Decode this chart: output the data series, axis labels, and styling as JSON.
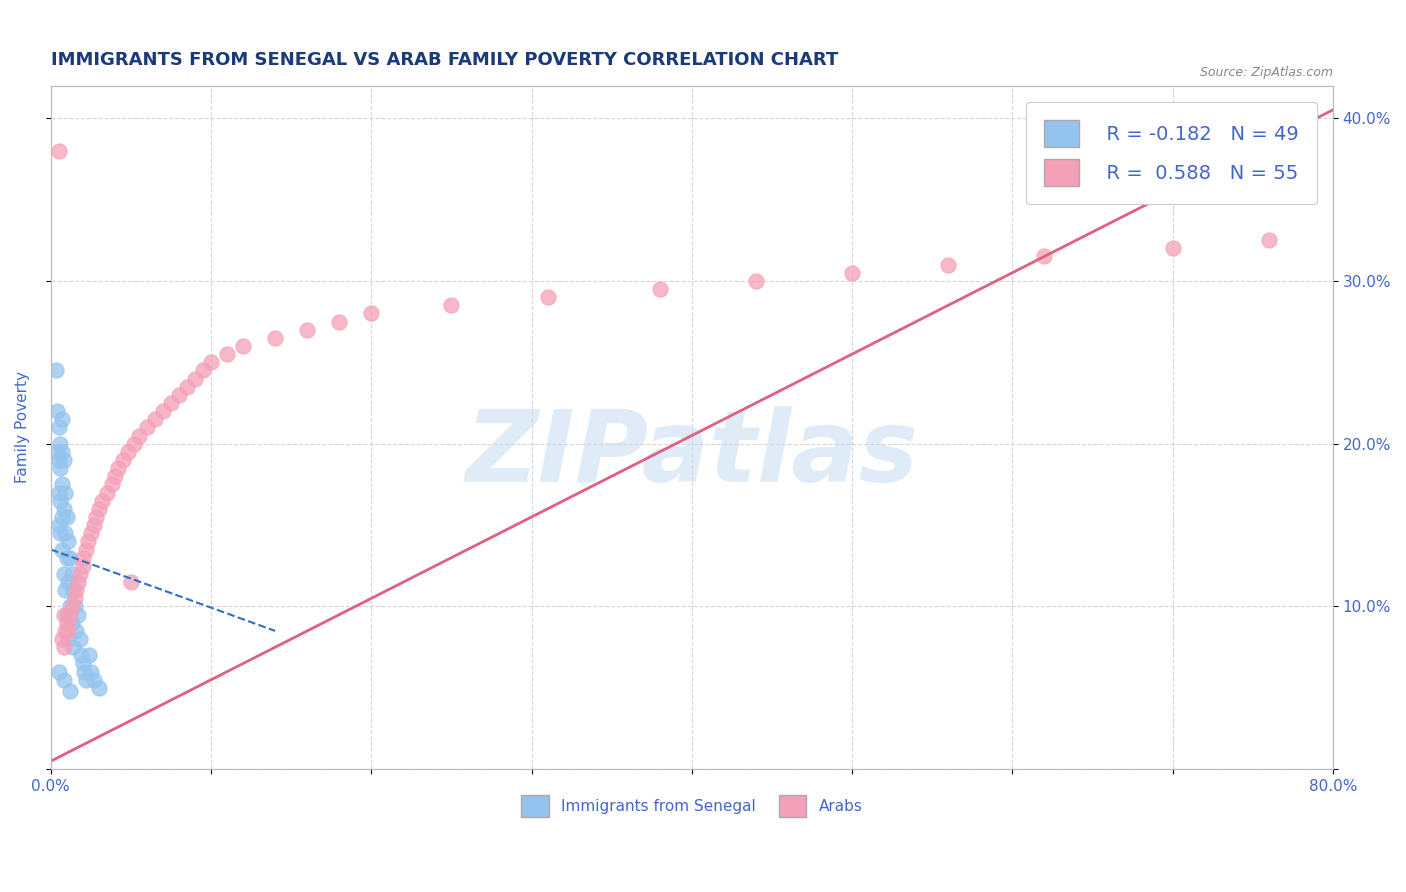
{
  "title": "IMMIGRANTS FROM SENEGAL VS ARAB FAMILY POVERTY CORRELATION CHART",
  "source_text": "Source: ZipAtlas.com",
  "ylabel": "Family Poverty",
  "xlim": [
    0.0,
    0.8
  ],
  "ylim": [
    0.0,
    0.42
  ],
  "xticks": [
    0.0,
    0.1,
    0.2,
    0.3,
    0.4,
    0.5,
    0.6,
    0.7,
    0.8
  ],
  "xticklabels": [
    "0.0%",
    "",
    "",
    "",
    "",
    "",
    "",
    "",
    "80.0%"
  ],
  "yticks_right": [
    0.0,
    0.1,
    0.2,
    0.3,
    0.4
  ],
  "yticklabels_right": [
    "",
    "10.0%",
    "20.0%",
    "30.0%",
    "40.0%"
  ],
  "blue_color": "#94C4EE",
  "pink_color": "#F4A0B8",
  "blue_R": -0.182,
  "blue_N": 49,
  "pink_R": 0.588,
  "pink_N": 55,
  "legend_label_blue": "Immigrants from Senegal",
  "legend_label_pink": "Arabs",
  "watermark": "ZIPatlas",
  "blue_scatter_x": [
    0.003,
    0.004,
    0.004,
    0.005,
    0.005,
    0.005,
    0.005,
    0.006,
    0.006,
    0.006,
    0.006,
    0.007,
    0.007,
    0.007,
    0.007,
    0.007,
    0.008,
    0.008,
    0.008,
    0.009,
    0.009,
    0.009,
    0.01,
    0.01,
    0.01,
    0.011,
    0.011,
    0.011,
    0.012,
    0.012,
    0.013,
    0.013,
    0.014,
    0.014,
    0.015,
    0.016,
    0.017,
    0.018,
    0.019,
    0.02,
    0.021,
    0.022,
    0.024,
    0.025,
    0.027,
    0.03,
    0.005,
    0.008,
    0.012
  ],
  "blue_scatter_y": [
    0.245,
    0.22,
    0.195,
    0.21,
    0.19,
    0.17,
    0.15,
    0.2,
    0.185,
    0.165,
    0.145,
    0.215,
    0.195,
    0.175,
    0.155,
    0.135,
    0.19,
    0.16,
    0.12,
    0.17,
    0.145,
    0.11,
    0.155,
    0.13,
    0.095,
    0.14,
    0.115,
    0.08,
    0.13,
    0.1,
    0.12,
    0.09,
    0.11,
    0.075,
    0.1,
    0.085,
    0.095,
    0.08,
    0.07,
    0.065,
    0.06,
    0.055,
    0.07,
    0.06,
    0.055,
    0.05,
    0.06,
    0.055,
    0.048
  ],
  "pink_scatter_x": [
    0.005,
    0.007,
    0.008,
    0.008,
    0.009,
    0.01,
    0.011,
    0.012,
    0.013,
    0.015,
    0.016,
    0.017,
    0.018,
    0.02,
    0.02,
    0.022,
    0.023,
    0.025,
    0.027,
    0.028,
    0.03,
    0.032,
    0.035,
    0.038,
    0.04,
    0.042,
    0.045,
    0.048,
    0.05,
    0.052,
    0.055,
    0.06,
    0.065,
    0.07,
    0.075,
    0.08,
    0.085,
    0.09,
    0.095,
    0.1,
    0.11,
    0.12,
    0.14,
    0.16,
    0.18,
    0.2,
    0.25,
    0.31,
    0.38,
    0.44,
    0.5,
    0.56,
    0.62,
    0.7,
    0.76
  ],
  "pink_scatter_y": [
    0.38,
    0.08,
    0.095,
    0.075,
    0.085,
    0.09,
    0.085,
    0.095,
    0.1,
    0.105,
    0.11,
    0.115,
    0.12,
    0.125,
    0.13,
    0.135,
    0.14,
    0.145,
    0.15,
    0.155,
    0.16,
    0.165,
    0.17,
    0.175,
    0.18,
    0.185,
    0.19,
    0.195,
    0.115,
    0.2,
    0.205,
    0.21,
    0.215,
    0.22,
    0.225,
    0.23,
    0.235,
    0.24,
    0.245,
    0.25,
    0.255,
    0.26,
    0.265,
    0.27,
    0.275,
    0.28,
    0.285,
    0.29,
    0.295,
    0.3,
    0.305,
    0.31,
    0.315,
    0.32,
    0.325
  ],
  "pink_line_x0": 0.0,
  "pink_line_y0": 0.005,
  "pink_line_x1": 0.8,
  "pink_line_y1": 0.405,
  "blue_line_x0": 0.0,
  "blue_line_y0": 0.135,
  "blue_line_x1": 0.14,
  "blue_line_y1": 0.085,
  "background_color": "#FFFFFF",
  "grid_color": "#BBBBBB",
  "title_color": "#1A3A7A",
  "tick_color": "#4466CC"
}
